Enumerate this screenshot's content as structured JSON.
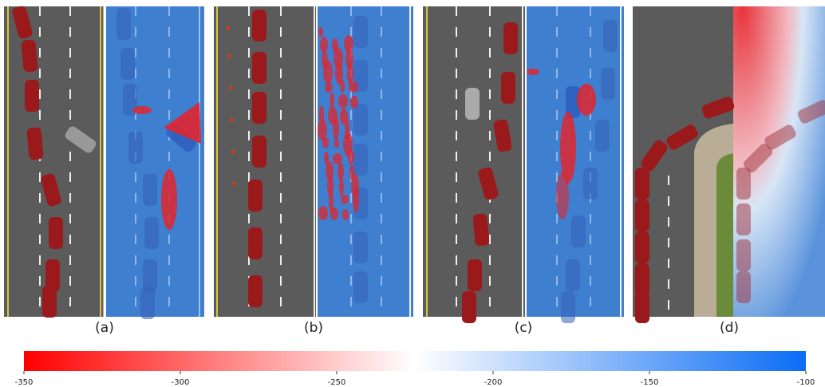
{
  "panels": [
    {
      "label": "(a)"
    },
    {
      "label": "(b)"
    },
    {
      "label": "(c)"
    },
    {
      "label": "(d)"
    }
  ],
  "colorbar": {
    "lim": [
      -350,
      -100
    ],
    "ticks": [
      -350,
      -300,
      -250,
      -200,
      -150,
      -100
    ],
    "colors": [
      "#ff0000",
      "#ffffff",
      "#0a6cf5"
    ]
  }
}
